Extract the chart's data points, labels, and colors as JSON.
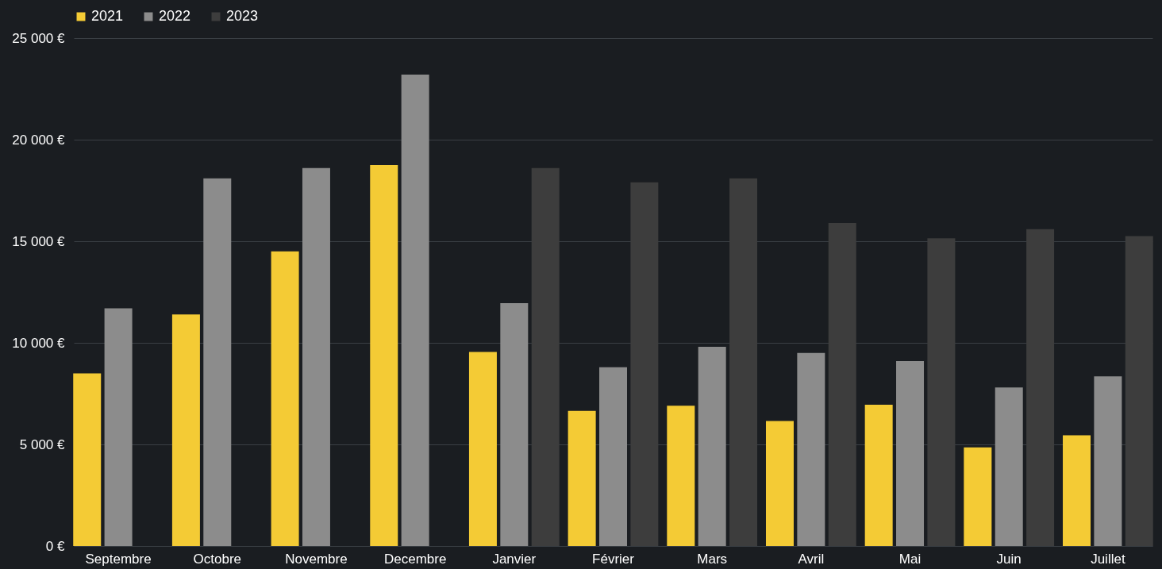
{
  "chart_data": {
    "type": "bar",
    "categories": [
      "Septembre",
      "Octobre",
      "Novembre",
      "Decembre",
      "Janvier",
      "Février",
      "Mars",
      "Avril",
      "Mai",
      "Juin",
      "Juillet"
    ],
    "series": [
      {
        "name": "2021",
        "color": "#f4cb35",
        "values": [
          8500,
          11400,
          14500,
          18750,
          9550,
          6650,
          6900,
          6150,
          6950,
          4850,
          5450
        ]
      },
      {
        "name": "2022",
        "color": "#8c8c8c",
        "values": [
          11700,
          18100,
          18600,
          23200,
          11950,
          8800,
          9800,
          9500,
          9100,
          7800,
          8350
        ]
      },
      {
        "name": "2023",
        "color": "#3d3d3d",
        "values": [
          null,
          null,
          null,
          null,
          18600,
          17900,
          18100,
          15900,
          15150,
          15600,
          15250
        ]
      }
    ],
    "ylim": [
      0,
      25000
    ],
    "yticks": [
      {
        "value": 0,
        "label": "0 €"
      },
      {
        "value": 5000,
        "label": "5 000 €"
      },
      {
        "value": 10000,
        "label": "10 000 €"
      },
      {
        "value": 15000,
        "label": "15 000 €"
      },
      {
        "value": 20000,
        "label": "20 000 €"
      },
      {
        "value": 25000,
        "label": "25 000 €"
      }
    ],
    "grid": "y",
    "legend": "top"
  }
}
